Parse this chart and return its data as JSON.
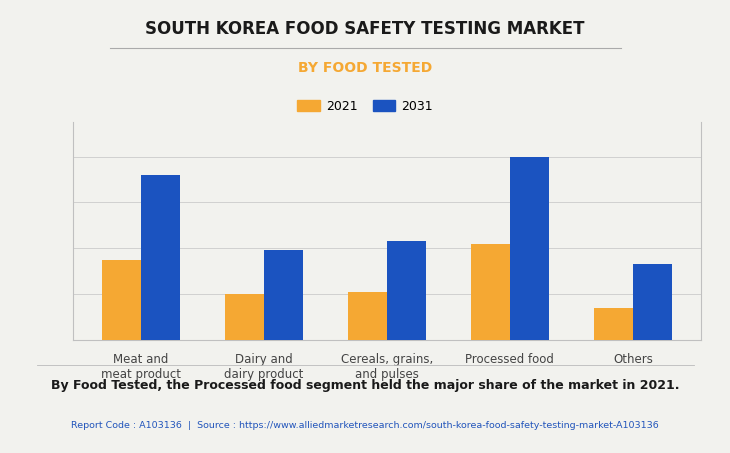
{
  "title": "SOUTH KOREA FOOD SAFETY TESTING MARKET",
  "subtitle": "BY FOOD TESTED",
  "categories": [
    "Meat and\nmeat product",
    "Dairy and\ndairy product",
    "Cereals, grains,\nand pulses",
    "Processed food",
    "Others"
  ],
  "values_2021": [
    3.5,
    2.0,
    2.1,
    4.2,
    1.4
  ],
  "values_2031": [
    7.2,
    3.9,
    4.3,
    8.0,
    3.3
  ],
  "color_2021": "#F5A833",
  "color_2031": "#1B53C0",
  "legend_labels": [
    "2021",
    "2031"
  ],
  "background_color": "#F2F2EE",
  "title_color": "#1a1a1a",
  "subtitle_color": "#F5A833",
  "footer_text": "By Food Tested, the Processed food segment held the major share of the market in 2021.",
  "source_text": "Report Code : A103136  |  Source : https://www.alliedmarketresearch.com/south-korea-food-safety-testing-market-A103136",
  "source_color": "#2255BB",
  "ylim": [
    0,
    9.5
  ],
  "bar_width": 0.32
}
